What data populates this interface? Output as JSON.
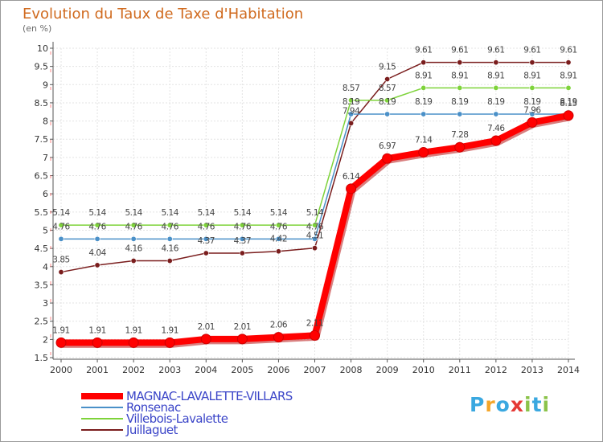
{
  "header": {
    "title": "Evolution du Taux de Taxe d'Habitation",
    "subtitle": "(en %)"
  },
  "logo": {
    "text": "Proxiti",
    "colors": [
      "#3aa8e0",
      "#f4a62a",
      "#8bc34a",
      "#e53935"
    ]
  },
  "chart_data": {
    "type": "line",
    "x": [
      2000,
      2001,
      2002,
      2003,
      2004,
      2005,
      2006,
      2007,
      2008,
      2009,
      2010,
      2011,
      2012,
      2013,
      2014
    ],
    "ylim": [
      1.5,
      10
    ],
    "yticks": [
      "1.5",
      "2",
      "2.5",
      "3",
      "3.5",
      "4",
      "4.5",
      "5",
      "5.5",
      "6",
      "6.5",
      "7",
      "7.5",
      "8",
      "8.5",
      "9",
      "9.5",
      "10"
    ],
    "grid": true,
    "legend_position": "bottom-left",
    "series": [
      {
        "name": "MAGNAC-LAVALETTE-VILLARS",
        "color": "#ff0000",
        "values": [
          1.91,
          1.91,
          1.91,
          1.91,
          2.01,
          2.01,
          2.06,
          2.11,
          6.14,
          6.97,
          7.14,
          7.28,
          7.46,
          7.96,
          8.15
        ],
        "labels": [
          "1.91",
          "1.91",
          "1.91",
          "1.91",
          "2.01",
          "2.01",
          "2.06",
          "2.11",
          "6.14",
          "6.97",
          "7.14",
          "7.28",
          "7.46",
          "7.96",
          "8.15"
        ]
      },
      {
        "name": "Ronsenac",
        "color": "#4a90c8",
        "values": [
          4.76,
          4.76,
          4.76,
          4.76,
          4.76,
          4.76,
          4.76,
          4.76,
          8.19,
          8.19,
          8.19,
          8.19,
          8.19,
          8.19,
          8.19
        ],
        "labels": [
          "4.76",
          "4.76",
          "4.76",
          "4.76",
          "4.76",
          "4.76",
          "4.76",
          "4.76",
          "8.19",
          "8.19",
          "8.19",
          "8.19",
          "8.19",
          "8.19",
          "8.19"
        ]
      },
      {
        "name": "Villebois-Lavalette",
        "color": "#7ed33a",
        "values": [
          5.14,
          5.14,
          5.14,
          5.14,
          5.14,
          5.14,
          5.14,
          5.14,
          8.57,
          8.57,
          8.91,
          8.91,
          8.91,
          8.91,
          8.91
        ],
        "labels": [
          "5.14",
          "5.14",
          "5.14",
          "5.14",
          "5.14",
          "5.14",
          "5.14",
          "5.14",
          "8.57",
          "8.57",
          "8.91",
          "8.91",
          "8.91",
          "8.91",
          "8.91"
        ]
      },
      {
        "name": "Juillaguet",
        "color": "#7a1d1d",
        "values": [
          3.85,
          4.04,
          4.16,
          4.16,
          4.37,
          4.37,
          4.42,
          4.51,
          7.94,
          9.15,
          9.61,
          9.61,
          9.61,
          9.61,
          9.61
        ],
        "labels": [
          "3.85",
          "4.04",
          "4.16",
          "4.16",
          "4.37",
          "4.37",
          "4.42",
          "4.51",
          "7.94",
          "9.15",
          "9.61",
          "9.61",
          "9.61",
          "9.61",
          "9.61"
        ]
      }
    ]
  }
}
